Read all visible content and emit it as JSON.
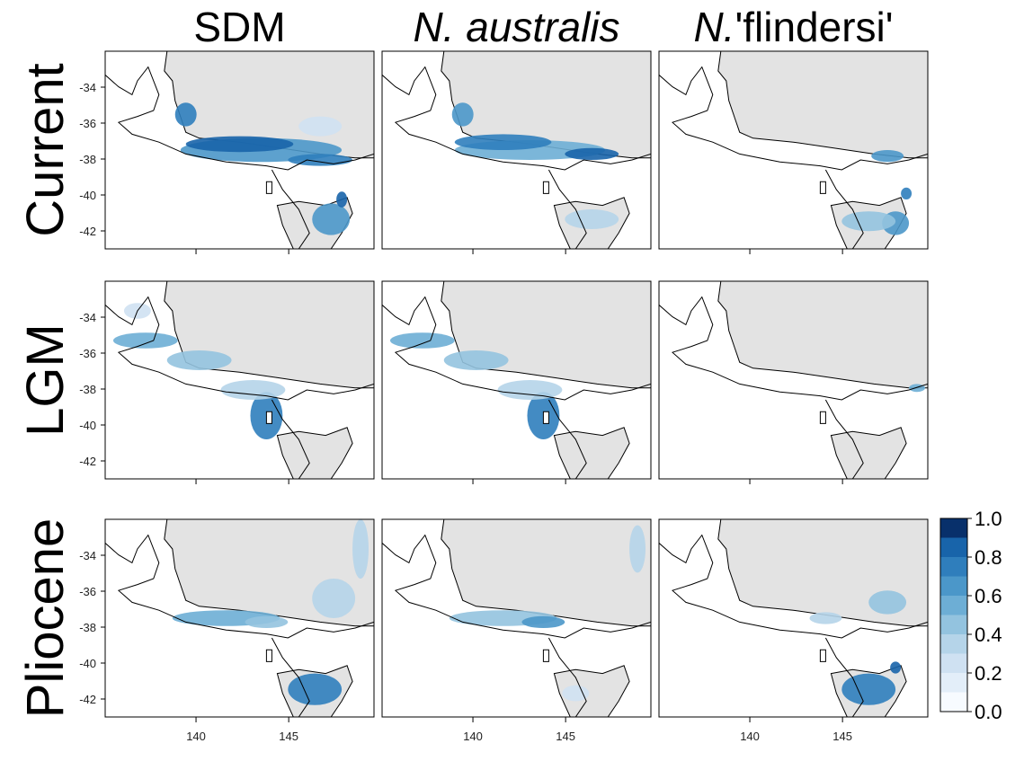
{
  "column_titles": [
    {
      "text": "SDM"
    },
    {
      "italic": "N. australis"
    },
    {
      "italic": "N.",
      "text": "'flindersi'"
    }
  ],
  "row_labels": [
    "Current",
    "LGM",
    "Pliocene"
  ],
  "xlim": [
    135.1,
    149.6
  ],
  "ylim": [
    -43,
    -32
  ],
  "xticks": [
    140,
    145
  ],
  "yticks": [
    -34,
    -36,
    -38,
    -40,
    -42
  ],
  "colorbar": {
    "lim": [
      0,
      1
    ],
    "ticks": [
      {
        "value": 0,
        "label": "0.0"
      },
      0.2,
      0.4,
      0.6,
      0.8,
      {
        "value": 1,
        "label": "1.0"
      }
    ],
    "colors": [
      "#f7fbff",
      "#e3eef9",
      "#cfe1f2",
      "#b5d4e9",
      "#93c3df",
      "#6daed5",
      "#4b97c9",
      "#2f7ebc",
      "#1864aa",
      "#08306b"
    ]
  }
}
